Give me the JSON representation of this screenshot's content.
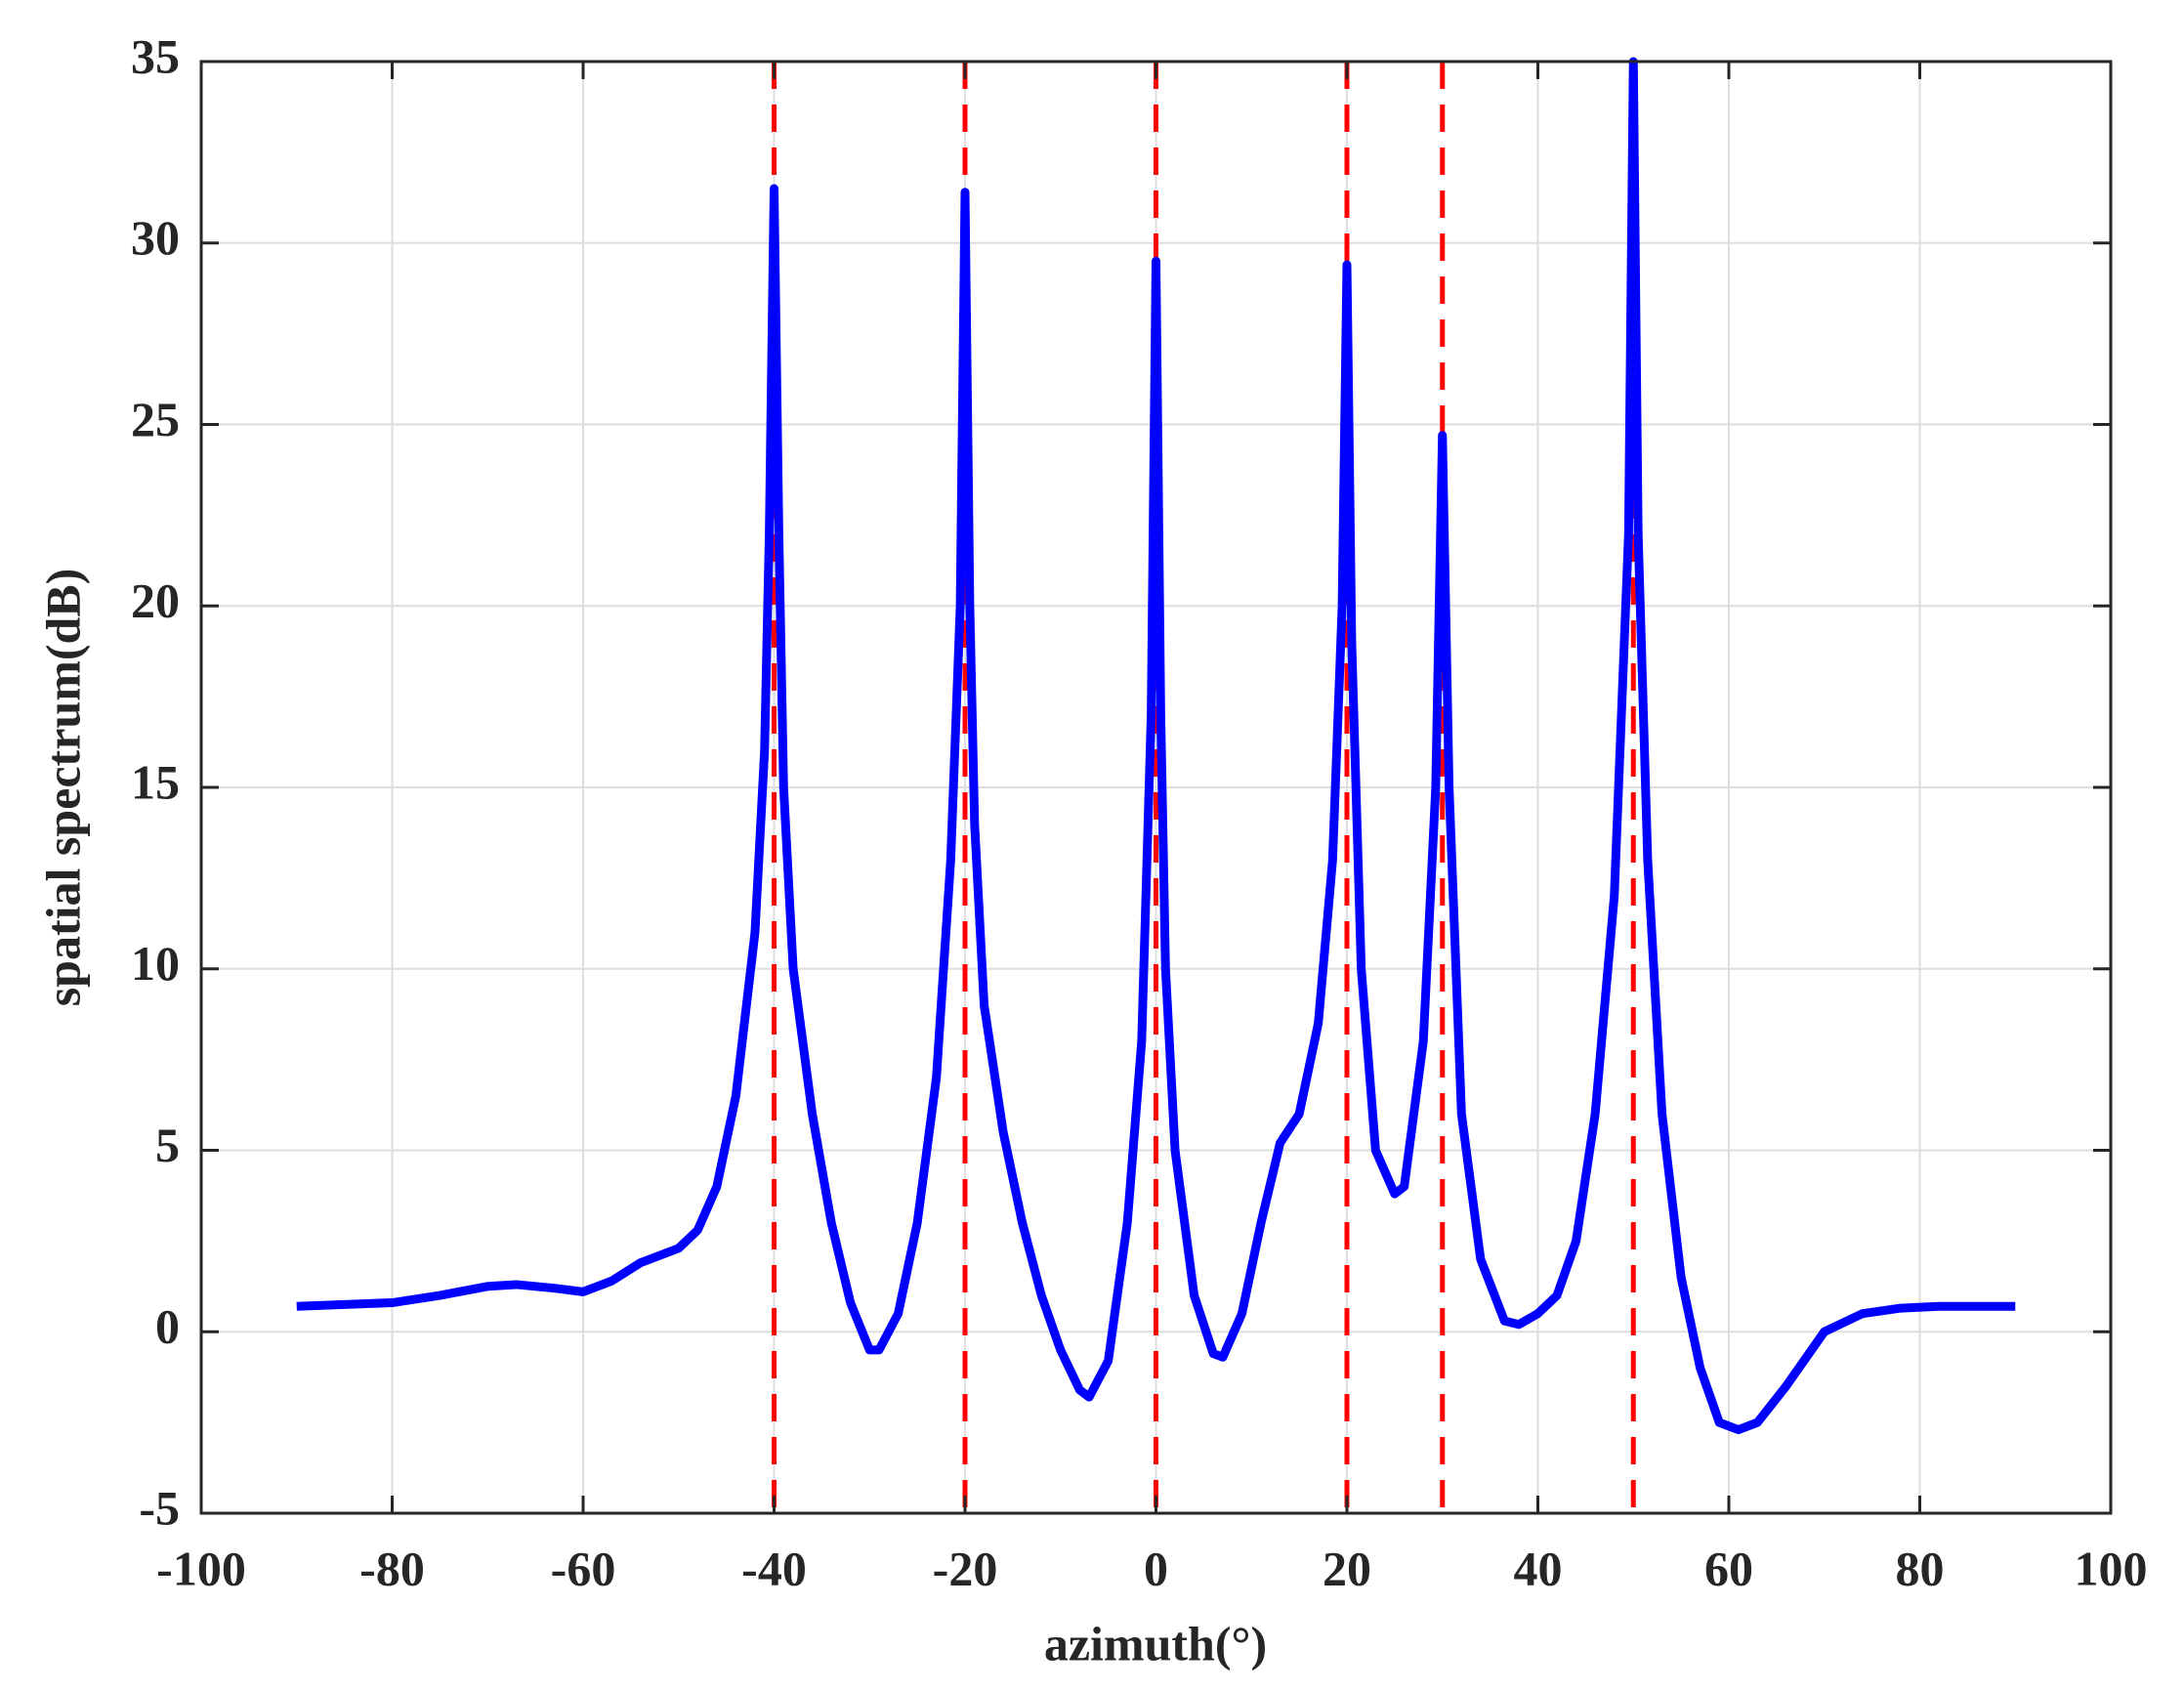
{
  "chart_data": {
    "type": "line",
    "xlabel": "azimuth(°)",
    "ylabel": "spatial spectrum(dB)",
    "xlim": [
      -100,
      100
    ],
    "xticks": [
      -100,
      -80,
      -60,
      -40,
      -20,
      0,
      20,
      40,
      60,
      80,
      100
    ],
    "ylim": [
      -5,
      35
    ],
    "yticks": [
      -5,
      0,
      5,
      10,
      15,
      20,
      25,
      30,
      35
    ],
    "grid": true,
    "x": [
      -90,
      -85,
      -80,
      -75,
      -70,
      -67,
      -63,
      -60,
      -57,
      -54,
      -50,
      -48,
      -46,
      -44,
      -42,
      -41,
      -40.5,
      -40,
      -39.5,
      -39,
      -38,
      -36,
      -34,
      -32,
      -30,
      -29,
      -27,
      -25,
      -23,
      -21.5,
      -20.5,
      -20,
      -19.5,
      -19,
      -18,
      -16,
      -14,
      -12,
      -10,
      -8,
      -7,
      -5,
      -3,
      -1.5,
      -0.5,
      0,
      0.5,
      1,
      2,
      4,
      6,
      7,
      9,
      11,
      13,
      15,
      17,
      18.5,
      19.5,
      20,
      20.5,
      21.5,
      23,
      25,
      26,
      28,
      29.3,
      30,
      30.7,
      32,
      34,
      36.5,
      38,
      40,
      42,
      44,
      46,
      48,
      49.5,
      50,
      50.5,
      51.5,
      53,
      55,
      57,
      59,
      61,
      63,
      66,
      70,
      74,
      78,
      82,
      90
    ],
    "series": [
      {
        "color": "#0000ff",
        "values": [
          0.7,
          0.75,
          0.8,
          1.0,
          1.25,
          1.3,
          1.2,
          1.1,
          1.4,
          1.9,
          2.3,
          2.8,
          4.0,
          6.5,
          11,
          16,
          22,
          31.5,
          22,
          15,
          10,
          6,
          3,
          0.8,
          -0.5,
          -0.5,
          0.5,
          3,
          7,
          13,
          20,
          31.4,
          20,
          14,
          9,
          5.5,
          3,
          1,
          -0.5,
          -1.6,
          -1.8,
          -0.8,
          3,
          8,
          17,
          29.5,
          17,
          10,
          5,
          1,
          -0.6,
          -0.7,
          0.5,
          3,
          5.2,
          6,
          8.5,
          13,
          20,
          29.4,
          19,
          10,
          5,
          3.8,
          4,
          8,
          15,
          24.7,
          15,
          6,
          2,
          0.3,
          0.2,
          0.5,
          1,
          2.5,
          6,
          12,
          22,
          35,
          22,
          13,
          6,
          1.5,
          -1,
          -2.5,
          -2.7,
          -2.5,
          -1.5,
          0,
          0.5,
          0.65,
          0.7,
          0.7
        ]
      }
    ],
    "vlines": {
      "x": [
        -40,
        -20,
        0,
        20,
        30,
        50
      ],
      "color": "#ff0000"
    }
  }
}
